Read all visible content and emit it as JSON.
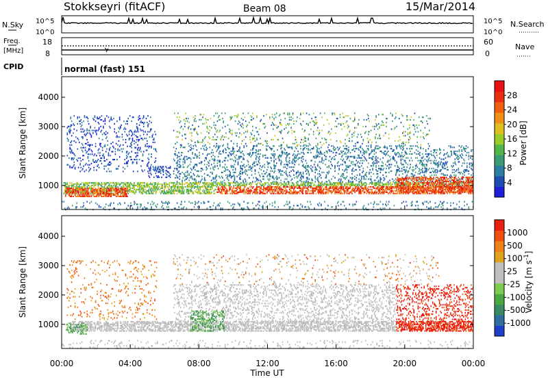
{
  "header": {
    "station": "Stokkseyri (fitACF)",
    "beam": "Beam 08",
    "date": "15/Mar/2014"
  },
  "noise_panel": {
    "left_label": "N.Sky",
    "right_label": "N.Search",
    "left_ticks": [
      "10^5",
      "10^0"
    ],
    "right_ticks": [
      "10^5",
      "10^0"
    ]
  },
  "freq_panel": {
    "left_label_1": "Freq.",
    "left_label_2": "[MHz]",
    "left_ticks": [
      "18",
      "8"
    ],
    "right_label": "Nave",
    "right_ticks": [
      "60",
      "0"
    ]
  },
  "cpid": {
    "label": "CPID",
    "mode": "normal (fast) 151"
  },
  "chart_data": [
    {
      "type": "heatmap",
      "title": "Power",
      "ylabel": "Slant Range [km]",
      "xlabel": "Time UT",
      "x_ticks": [
        "00:00",
        "04:00",
        "08:00",
        "12:00",
        "16:00",
        "20:00",
        "00:00"
      ],
      "y_ticks": [
        "1000",
        "2000",
        "3000",
        "4000"
      ],
      "ylim": [
        180,
        4700
      ],
      "xlim_hours": [
        0,
        24
      ],
      "colorbar": {
        "label": "Power [dB]",
        "ticks": [
          "4",
          "8",
          "12",
          "16",
          "20",
          "24",
          "28"
        ],
        "range": [
          0,
          32
        ],
        "colors": [
          "#1f1fd8",
          "#1e4fb0",
          "#2e7ea2",
          "#3c9b76",
          "#54b54a",
          "#9ccc28",
          "#e0c020",
          "#f09018",
          "#f06010",
          "#e83010",
          "#e81010"
        ]
      }
    },
    {
      "type": "heatmap",
      "title": "Velocity",
      "ylabel": "Slant Range [km]",
      "xlabel": "Time UT",
      "x_ticks": [
        "00:00",
        "04:00",
        "08:00",
        "12:00",
        "16:00",
        "20:00",
        "00:00"
      ],
      "y_ticks": [
        "1000",
        "2000",
        "3000",
        "4000"
      ],
      "ylim": [
        180,
        4700
      ],
      "xlim_hours": [
        0,
        24
      ],
      "colorbar": {
        "label": "Velocity [m s^-1]",
        "ticks": [
          "1000",
          "500",
          "100",
          "25",
          "-25",
          "-100",
          "-500",
          "-1000"
        ],
        "range": [
          -1250,
          1250
        ],
        "colors": [
          "#1f3fc8",
          "#2e6e9e",
          "#3a8a64",
          "#4aa840",
          "#7ccc50",
          "#bfbfbf",
          "#bfbfbf",
          "#e0a020",
          "#f08018",
          "#f05010",
          "#e82010"
        ]
      }
    }
  ]
}
